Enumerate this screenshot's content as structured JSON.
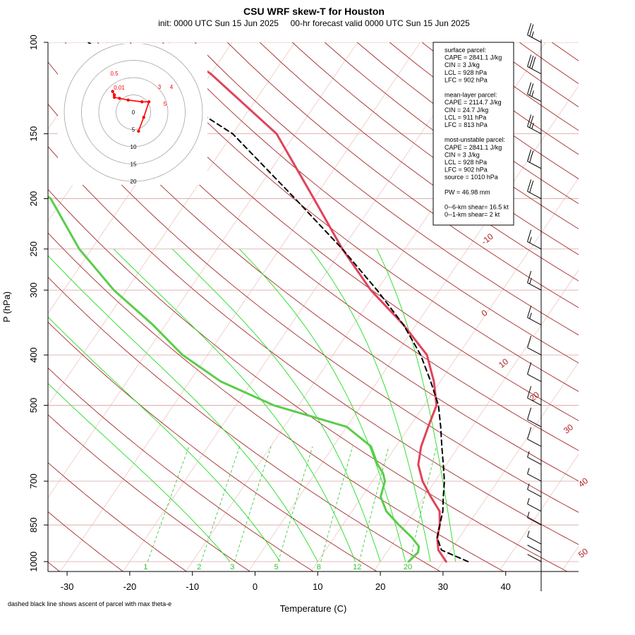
{
  "title": "CSU WRF skew-T for Houston",
  "subtitle": "init: 0000 UTC Sun 15 Jun 2025     00-hr forecast valid 0000 UTC Sun 15 Jun 2025",
  "footnote": "dashed black line shows ascent of parcel with max theta-e",
  "colors": {
    "temperature": "#e0435a",
    "dewpoint": "#5acd4a",
    "parcel": "#000000",
    "isotherm": "#b22222",
    "dry_adiabat": "#a52a2a",
    "moist_adiabat": "#22dd22",
    "mixing_ratio": "#2ec22e",
    "hodograph": "#ff0000",
    "grid": "#d9a0a0"
  },
  "chart_data": {
    "type": "line",
    "title": "CSU WRF skew-T for Houston",
    "xlabel": "Temperature (C)",
    "ylabel": "P (hPa)",
    "x_ticks": [
      -30,
      -20,
      -10,
      0,
      10,
      20,
      30,
      40
    ],
    "y_ticks": [
      100,
      150,
      200,
      250,
      300,
      400,
      500,
      700,
      850,
      1000
    ],
    "y_scale": "log",
    "isotherm_labels": [
      -10,
      0,
      10,
      20,
      30,
      40,
      50
    ],
    "mixing_ratio_labels": [
      1,
      2,
      3,
      5,
      8,
      12,
      20
    ],
    "series": [
      {
        "name": "temperature",
        "points": [
          [
            30.5,
            1000
          ],
          [
            28,
            950
          ],
          [
            26.5,
            900
          ],
          [
            25.5,
            850
          ],
          [
            24,
            800
          ],
          [
            21,
            750
          ],
          [
            18,
            700
          ],
          [
            15.5,
            650
          ],
          [
            14,
            600
          ],
          [
            13,
            550
          ],
          [
            12,
            500
          ],
          [
            9,
            450
          ],
          [
            5,
            400
          ],
          [
            -2,
            350
          ],
          [
            -11,
            300
          ],
          [
            -20,
            250
          ],
          [
            -30,
            200
          ],
          [
            -43,
            150
          ],
          [
            -60,
            115
          ],
          [
            -67,
            105
          ]
        ]
      },
      {
        "name": "dewpoint",
        "points": [
          [
            24.5,
            1000
          ],
          [
            25,
            960
          ],
          [
            24.5,
            935
          ],
          [
            22.5,
            900
          ],
          [
            19,
            850
          ],
          [
            15.5,
            800
          ],
          [
            13,
            750
          ],
          [
            12,
            700
          ],
          [
            10.8,
            675
          ],
          [
            9,
            650
          ],
          [
            6,
            600
          ],
          [
            0,
            550
          ],
          [
            -14,
            500
          ],
          [
            -25,
            450
          ],
          [
            -34,
            400
          ],
          [
            -42,
            350
          ],
          [
            -52,
            300
          ],
          [
            -62,
            250
          ],
          [
            -72,
            200
          ],
          [
            -80,
            180
          ]
        ]
      },
      {
        "name": "parcel",
        "points": [
          [
            34,
            1000
          ],
          [
            28.5,
            950
          ],
          [
            26.5,
            900
          ],
          [
            25.5,
            850
          ],
          [
            24.5,
            800
          ],
          [
            23,
            750
          ],
          [
            21.5,
            700
          ],
          [
            19.5,
            650
          ],
          [
            17.3,
            600
          ],
          [
            15,
            550
          ],
          [
            12.3,
            500
          ],
          [
            8.5,
            450
          ],
          [
            4,
            400
          ],
          [
            -2,
            350
          ],
          [
            -10,
            300
          ],
          [
            -20,
            250
          ],
          [
            -33,
            200
          ],
          [
            -50,
            150
          ],
          [
            -68,
            120
          ],
          [
            -83,
            100
          ]
        ]
      }
    ],
    "wind_barbs_kt": [
      {
        "p": 1000,
        "spd": 3
      },
      {
        "p": 960,
        "spd": 4
      },
      {
        "p": 925,
        "spd": 5
      },
      {
        "p": 850,
        "spd": 6
      },
      {
        "p": 800,
        "spd": 7
      },
      {
        "p": 750,
        "spd": 8
      },
      {
        "p": 700,
        "spd": 8
      },
      {
        "p": 650,
        "spd": 9
      },
      {
        "p": 600,
        "spd": 10
      },
      {
        "p": 550,
        "spd": 12
      },
      {
        "p": 500,
        "spd": 10
      },
      {
        "p": 450,
        "spd": 12
      },
      {
        "p": 400,
        "spd": 14
      },
      {
        "p": 350,
        "spd": 15
      },
      {
        "p": 300,
        "spd": 16
      },
      {
        "p": 250,
        "spd": 18
      },
      {
        "p": 200,
        "spd": 20
      },
      {
        "p": 175,
        "spd": 22
      },
      {
        "p": 150,
        "spd": 25
      },
      {
        "p": 130,
        "spd": 28
      },
      {
        "p": 115,
        "spd": 30
      },
      {
        "p": 100,
        "spd": 25
      }
    ],
    "hodograph": {
      "ring_labels": [
        "0",
        "5",
        "10",
        "15",
        "20"
      ],
      "points": [
        [
          1.5,
          -5.5
        ],
        [
          3.0,
          -1.5
        ],
        [
          4.5,
          3.0
        ],
        [
          2.5,
          3.0
        ],
        [
          -1.5,
          3.5
        ],
        [
          -4.0,
          4.0
        ],
        [
          -5.5,
          4.3
        ],
        [
          -5.5,
          5.0
        ],
        [
          -6.0,
          6.0
        ]
      ],
      "point_labels": [
        "0.01",
        "0.5",
        "3",
        "4",
        "5"
      ]
    },
    "info_box": [
      "surface parcel:",
      "CAPE = 2841.1 J/kg",
      "CIN = 3 J/kg",
      "LCL = 928 hPa",
      "LFC = 902 hPa",
      "",
      "mean-layer parcel:",
      "CAPE = 2114.7 J/kg",
      "CIN = 24.7 J/kg",
      "LCL = 911 hPa",
      "LFC = 813 hPa",
      "",
      "most-unstable parcel:",
      "CAPE = 2841.1 J/kg",
      "CIN = 3 J/kg",
      "LCL = 928 hPa",
      "LFC = 902 hPa",
      "source = 1010 hPa",
      "",
      "PW =  46.98 mm",
      "",
      "0--6-km shear= 16.5 kt",
      "0--1-km shear= 2 kt"
    ]
  }
}
